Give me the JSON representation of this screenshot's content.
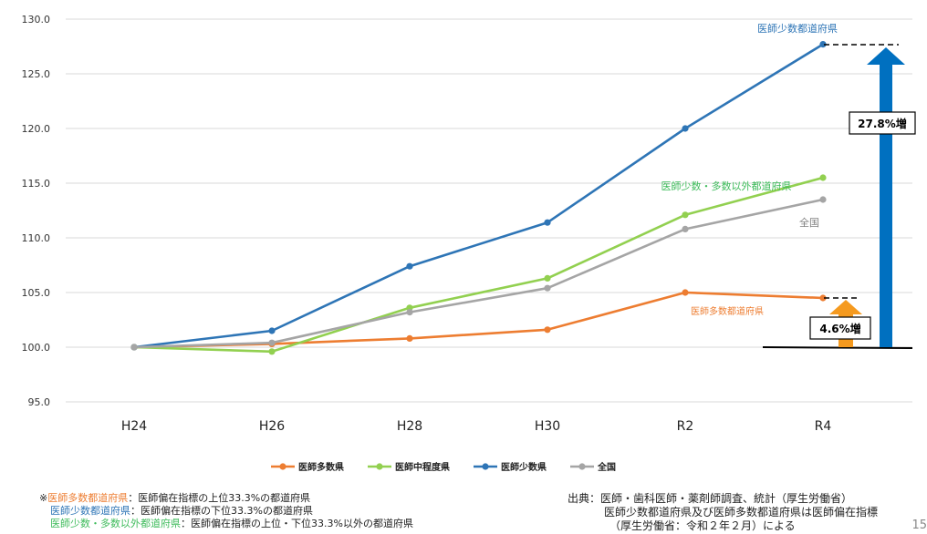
{
  "chart_data": {
    "type": "line",
    "categories": [
      "H24",
      "H26",
      "H28",
      "H30",
      "R2",
      "R4"
    ],
    "ylim": [
      95,
      130
    ],
    "yticks": [
      "95.0",
      "100.0",
      "105.0",
      "110.0",
      "115.0",
      "120.0",
      "125.0",
      "130.0"
    ],
    "series": [
      {
        "name": "医師多数県",
        "color": "#ED7D31",
        "values": [
          100.0,
          100.3,
          100.8,
          101.6,
          105.0,
          104.5
        ]
      },
      {
        "name": "医師中程度県",
        "color": "#92D050",
        "values": [
          100.0,
          99.6,
          103.6,
          106.3,
          112.1,
          115.5
        ]
      },
      {
        "name": "医師少数県",
        "color": "#2E75B6",
        "values": [
          100.0,
          101.5,
          107.4,
          111.4,
          120.0,
          127.7
        ]
      },
      {
        "name": "全国",
        "color": "#A5A5A5",
        "values": [
          100.0,
          100.4,
          103.2,
          105.4,
          110.8,
          113.5
        ]
      }
    ],
    "annotations": {
      "low_label": "医師少数都道府県",
      "mid_label": "医師少数・多数以外都道府県",
      "all_label": "全国",
      "high_label": "医師多数都道府県",
      "big_increase": "27.8%増",
      "small_increase": "4.6%増"
    }
  },
  "notes": {
    "mark": "※",
    "line1_key": "医師多数都道府県",
    "line1_text": "：医師偏在指標の上位33.3%の都道府県",
    "line2_key": "医師少数都道府県",
    "line2_text": "：医師偏在指標の下位33.3%の都道府県",
    "line3_key": "医師少数・多数以外都道府県",
    "line3_text": "：医師偏在指標の上位・下位33.3%以外の都道府県"
  },
  "source": {
    "line1": "出典：医師・歯科医師・薬剤師調査、統計（厚生労働省）",
    "line2": "医師少数都道府県及び医師多数都道府県は医師偏在指標",
    "line3": "（厚生労働省：令和２年２月）による"
  },
  "page_number": "15",
  "colors": {
    "orange": "#ED7D31",
    "green": "#92D050",
    "blue": "#2E75B6",
    "gray": "#A5A5A5",
    "arrow_blue": "#0070C0",
    "arrow_orange": "#F59A1F"
  }
}
